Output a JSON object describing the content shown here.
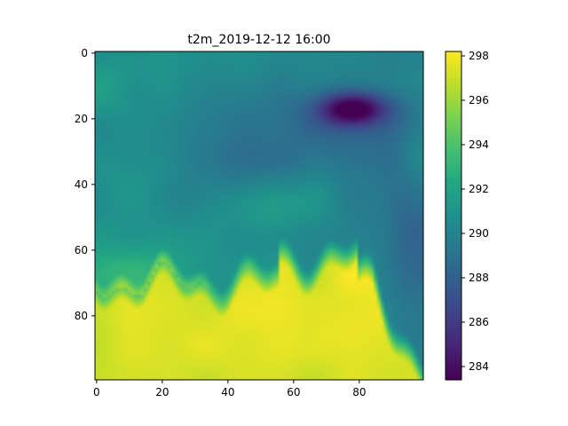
{
  "chart_data": {
    "type": "heatmap",
    "title": "t2m_2019-12-12 16:00",
    "colormap": "viridis",
    "grid": false,
    "x_ticks": [
      0,
      20,
      40,
      60,
      80
    ],
    "y_ticks": [
      0,
      20,
      40,
      60,
      80
    ],
    "x_range": [
      0,
      99
    ],
    "y_range": [
      0,
      99
    ],
    "y_axis_inverted": true,
    "colorbar": {
      "position": "right",
      "min": 283.4,
      "max": 298.2,
      "ticks": [
        284,
        286,
        288,
        290,
        292,
        294,
        296,
        298
      ]
    },
    "field_description": {
      "base_north_value": 290.5,
      "cold_spot": {
        "x": 78,
        "y": 17,
        "value": 283.5
      },
      "warm_region_south": {
        "value_range": [
          297,
          298.2
        ]
      }
    }
  }
}
